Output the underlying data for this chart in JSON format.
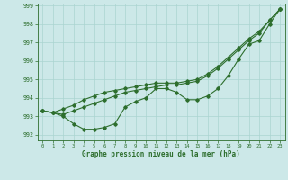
{
  "xlabel": "Graphe pression niveau de la mer (hPa)",
  "background_color": "#cce8e8",
  "grid_color": "#aad4d0",
  "line_color": "#2d6e2d",
  "xlim": [
    -0.5,
    23.5
  ],
  "ylim": [
    991.7,
    999.1
  ],
  "yticks": [
    992,
    993,
    994,
    995,
    996,
    997,
    998,
    999
  ],
  "xticks": [
    0,
    1,
    2,
    3,
    4,
    5,
    6,
    7,
    8,
    9,
    10,
    11,
    12,
    13,
    14,
    15,
    16,
    17,
    18,
    19,
    20,
    21,
    22,
    23
  ],
  "series1": [
    993.3,
    993.2,
    993.0,
    992.6,
    992.3,
    992.3,
    992.4,
    992.6,
    993.5,
    993.8,
    994.0,
    994.5,
    994.5,
    994.3,
    993.9,
    993.9,
    994.1,
    994.5,
    995.2,
    996.1,
    996.9,
    997.1,
    998.0,
    998.8
  ],
  "series2": [
    993.3,
    993.2,
    993.1,
    993.3,
    993.5,
    993.7,
    993.9,
    994.1,
    994.3,
    994.4,
    994.5,
    994.6,
    994.7,
    994.7,
    994.8,
    994.9,
    995.2,
    995.6,
    996.1,
    996.6,
    997.1,
    997.5,
    998.2,
    998.8
  ],
  "series3": [
    993.3,
    993.2,
    993.4,
    993.6,
    993.9,
    994.1,
    994.3,
    994.4,
    994.5,
    994.6,
    994.7,
    994.8,
    994.8,
    994.8,
    994.9,
    995.0,
    995.3,
    995.7,
    996.2,
    996.7,
    997.2,
    997.6,
    998.2,
    998.8
  ]
}
